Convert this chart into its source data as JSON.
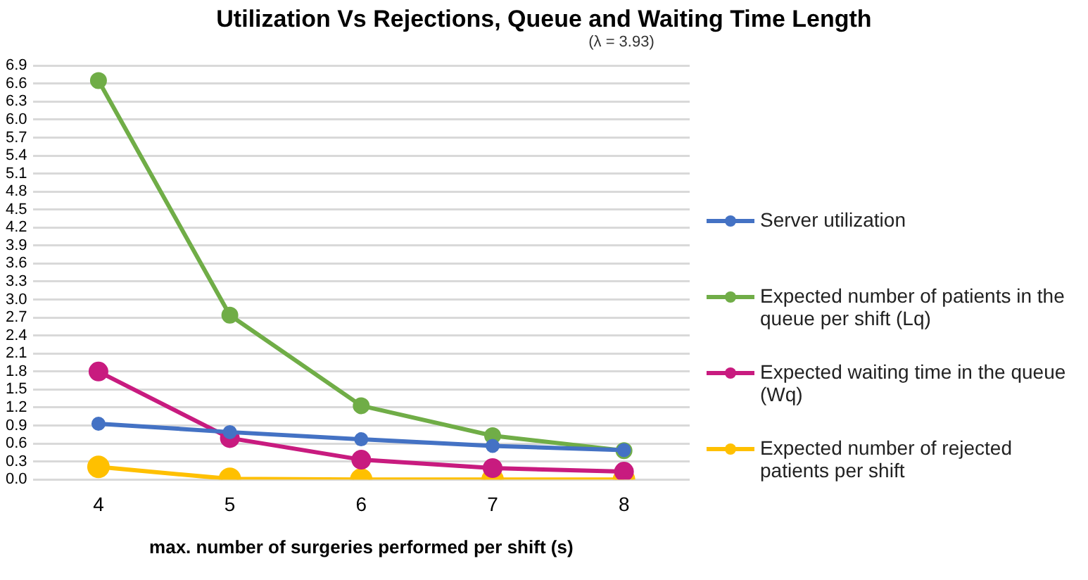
{
  "chart_data": {
    "type": "line",
    "title": "Utilization Vs Rejections, Queue and Waiting Time Length",
    "subtitle": "(λ = 3.93)",
    "xlabel": "max. number of surgeries performed per shift (s)",
    "categories": [
      "4",
      "5",
      "6",
      "7",
      "8"
    ],
    "series": [
      {
        "name": "Server utilization",
        "color": "#4472c4",
        "values": [
          0.93,
          0.79,
          0.67,
          0.56,
          0.49
        ]
      },
      {
        "name": "Expected number of patients in the queue per shift (Lq)",
        "color": "#70ad47",
        "values": [
          6.65,
          2.74,
          1.23,
          0.73,
          0.48
        ]
      },
      {
        "name": "Expected waiting time in the queue (Wq)",
        "color": "#c81b7f",
        "values": [
          1.8,
          0.69,
          0.33,
          0.19,
          0.13
        ]
      },
      {
        "name": "Expected number of rejected patients per shift",
        "color": "#ffc000",
        "values": [
          0.21,
          0.01,
          0.0,
          0.0,
          0.0
        ]
      }
    ],
    "ylim": [
      0,
      6.9
    ],
    "yticks": [
      {
        "value": 0,
        "label": "0.0"
      },
      0.3,
      0.6,
      0.9,
      1.2,
      1.5,
      1.8,
      2.1,
      2.4,
      2.7,
      {
        "value": 3,
        "label": "3.0"
      },
      3.3,
      3.6,
      3.9,
      4.2,
      4.5,
      4.8,
      5.1,
      5.4,
      5.7,
      {
        "value": 6,
        "label": "6.0"
      },
      6.3,
      6.6,
      6.9
    ],
    "grid": "y",
    "legend": "right",
    "marker": "circle",
    "line_style": "solid"
  }
}
